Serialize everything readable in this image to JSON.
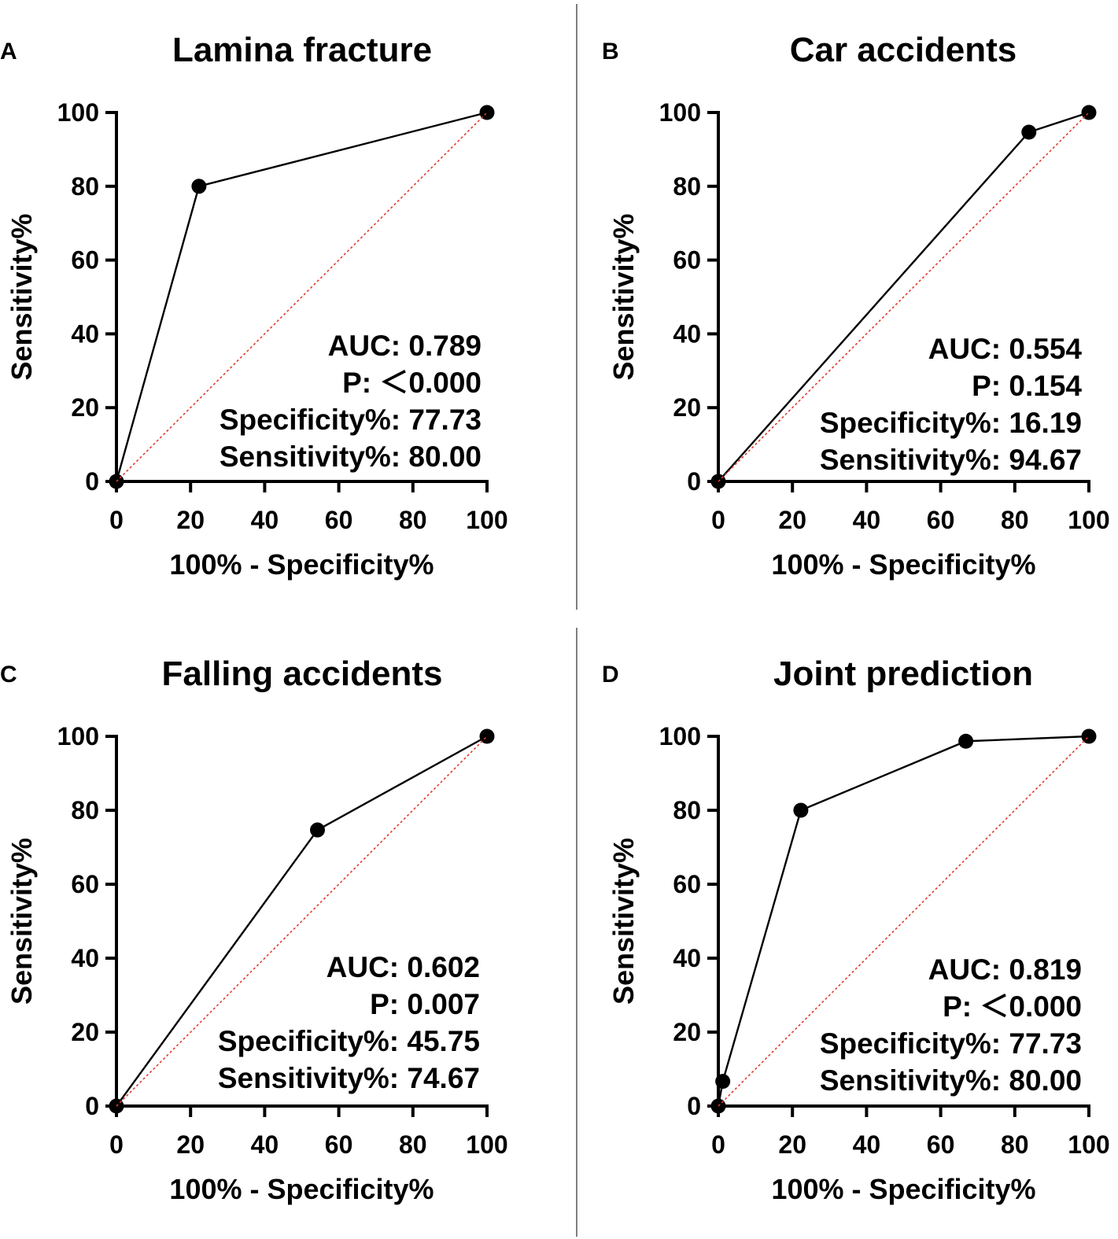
{
  "figure": {
    "colors": {
      "reference_line": "#e03b2b",
      "curve": "#000000",
      "divider": "#555555"
    }
  },
  "chart_data": [
    {
      "panel": "A",
      "type": "line",
      "title": "Lamina fracture",
      "xlabel": "100% - Specificity%",
      "ylabel": "Sensitivity%",
      "xlim": [
        0,
        100
      ],
      "ylim": [
        0,
        100
      ],
      "xticks": [
        "0",
        "20",
        "40",
        "60",
        "80",
        "100"
      ],
      "yticks": [
        "0",
        "20",
        "40",
        "60",
        "80",
        "100"
      ],
      "series": [
        {
          "name": "ROC",
          "x": [
            0,
            22.27,
            100
          ],
          "y": [
            0,
            80.0,
            100
          ]
        },
        {
          "name": "Reference",
          "x": [
            0,
            100
          ],
          "y": [
            0,
            100
          ]
        }
      ],
      "stats": [
        "AUC: 0.789",
        "P: ＜0.000",
        "Specificity%: 77.73",
        "Sensitivity%: 80.00"
      ]
    },
    {
      "panel": "B",
      "type": "line",
      "title": "Car accidents",
      "xlabel": "100% - Specificity%",
      "ylabel": "Sensitivity%",
      "xlim": [
        0,
        100
      ],
      "ylim": [
        0,
        100
      ],
      "xticks": [
        "0",
        "20",
        "40",
        "60",
        "80",
        "100"
      ],
      "yticks": [
        "0",
        "20",
        "40",
        "60",
        "80",
        "100"
      ],
      "series": [
        {
          "name": "ROC",
          "x": [
            0,
            83.81,
            100
          ],
          "y": [
            0,
            94.67,
            100
          ]
        },
        {
          "name": "Reference",
          "x": [
            0,
            100
          ],
          "y": [
            0,
            100
          ]
        }
      ],
      "stats": [
        "AUC: 0.554",
        "P: 0.154",
        "Specificity%: 16.19",
        "Sensitivity%: 94.67"
      ]
    },
    {
      "panel": "C",
      "type": "line",
      "title": "Falling accidents",
      "xlabel": "100% - Specificity%",
      "ylabel": "Sensitivity%",
      "xlim": [
        0,
        100
      ],
      "ylim": [
        0,
        100
      ],
      "xticks": [
        "0",
        "20",
        "40",
        "60",
        "80",
        "100"
      ],
      "yticks": [
        "0",
        "20",
        "40",
        "60",
        "80",
        "100"
      ],
      "series": [
        {
          "name": "ROC",
          "x": [
            0,
            54.25,
            100
          ],
          "y": [
            0,
            74.67,
            100
          ]
        },
        {
          "name": "Reference",
          "x": [
            0,
            100
          ],
          "y": [
            0,
            100
          ]
        }
      ],
      "stats": [
        "AUC: 0.602",
        "P: 0.007",
        "Specificity%: 45.75",
        "Sensitivity%: 74.67"
      ]
    },
    {
      "panel": "D",
      "type": "line",
      "title": "Joint prediction",
      "xlabel": "100% - Specificity%",
      "ylabel": "Sensitivity%",
      "xlim": [
        0,
        100
      ],
      "ylim": [
        0,
        100
      ],
      "xticks": [
        "0",
        "20",
        "40",
        "60",
        "80",
        "100"
      ],
      "yticks": [
        "0",
        "20",
        "40",
        "60",
        "80",
        "100"
      ],
      "series": [
        {
          "name": "ROC",
          "x": [
            0,
            1.2,
            22.27,
            66.8,
            100
          ],
          "y": [
            0,
            6.67,
            80.0,
            98.67,
            100
          ]
        },
        {
          "name": "Reference",
          "x": [
            0,
            100
          ],
          "y": [
            0,
            100
          ]
        }
      ],
      "stats": [
        "AUC: 0.819",
        "P: ＜0.000",
        "Specificity%: 77.73",
        "Sensitivity%: 80.00"
      ]
    }
  ]
}
